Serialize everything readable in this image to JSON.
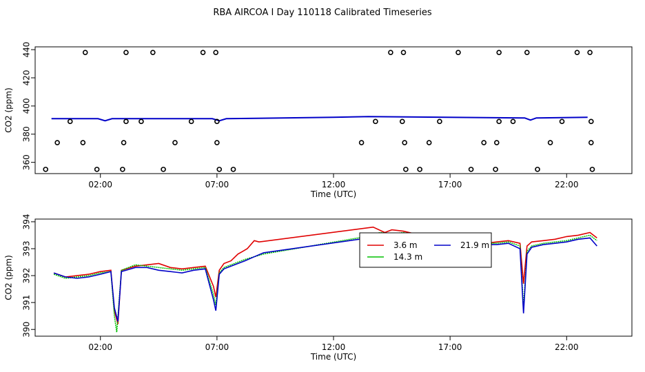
{
  "title": "RBA AIRCOA I  Day 110118  Calibrated Timeseries",
  "chart_data": [
    {
      "type": "scatter",
      "xlabel": "Time (UTC)",
      "ylabel": "CO2 (ppm)",
      "xlim": [
        -0.8,
        24.8
      ],
      "ylim": [
        352,
        442
      ],
      "xticks": [
        "02:00",
        "07:00",
        "12:00",
        "17:00",
        "22:00"
      ],
      "xtick_values": [
        2,
        7,
        12,
        17,
        22
      ],
      "yticks": [
        "360",
        "380",
        "400",
        "420",
        "440"
      ],
      "ytick_values": [
        360,
        380,
        400,
        420,
        440
      ],
      "points": [
        {
          "x": 1.35,
          "y": 438
        },
        {
          "x": 3.1,
          "y": 438
        },
        {
          "x": 4.25,
          "y": 438
        },
        {
          "x": 6.4,
          "y": 438
        },
        {
          "x": 6.95,
          "y": 438
        },
        {
          "x": 14.45,
          "y": 438
        },
        {
          "x": 15.0,
          "y": 438
        },
        {
          "x": 17.35,
          "y": 438
        },
        {
          "x": 19.1,
          "y": 438
        },
        {
          "x": 20.3,
          "y": 438
        },
        {
          "x": 22.45,
          "y": 438
        },
        {
          "x": 23.0,
          "y": 438
        },
        {
          "x": 0.7,
          "y": 389
        },
        {
          "x": 3.1,
          "y": 389
        },
        {
          "x": 3.75,
          "y": 389
        },
        {
          "x": 5.9,
          "y": 389
        },
        {
          "x": 7.0,
          "y": 389
        },
        {
          "x": 13.8,
          "y": 389
        },
        {
          "x": 14.95,
          "y": 389
        },
        {
          "x": 16.55,
          "y": 389
        },
        {
          "x": 19.1,
          "y": 389
        },
        {
          "x": 19.7,
          "y": 389
        },
        {
          "x": 21.8,
          "y": 389
        },
        {
          "x": 23.05,
          "y": 389
        },
        {
          "x": 0.15,
          "y": 374
        },
        {
          "x": 1.25,
          "y": 374
        },
        {
          "x": 3.0,
          "y": 374
        },
        {
          "x": 5.2,
          "y": 374
        },
        {
          "x": 7.0,
          "y": 374
        },
        {
          "x": 13.2,
          "y": 374
        },
        {
          "x": 15.05,
          "y": 374
        },
        {
          "x": 16.1,
          "y": 374
        },
        {
          "x": 18.45,
          "y": 374
        },
        {
          "x": 19.0,
          "y": 374
        },
        {
          "x": 21.3,
          "y": 374
        },
        {
          "x": 23.05,
          "y": 374
        },
        {
          "x": -0.35,
          "y": 355
        },
        {
          "x": 1.85,
          "y": 355
        },
        {
          "x": 2.95,
          "y": 355
        },
        {
          "x": 4.7,
          "y": 355
        },
        {
          "x": 7.1,
          "y": 355
        },
        {
          "x": 7.7,
          "y": 355
        },
        {
          "x": 15.1,
          "y": 355
        },
        {
          "x": 15.7,
          "y": 355
        },
        {
          "x": 17.9,
          "y": 355
        },
        {
          "x": 18.95,
          "y": 355
        },
        {
          "x": 20.75,
          "y": 355
        },
        {
          "x": 23.1,
          "y": 355
        }
      ],
      "line": {
        "x": [
          -0.1,
          1.9,
          2.2,
          2.5,
          6.8,
          7.1,
          7.4,
          12.0,
          13.5,
          20.2,
          20.45,
          20.7,
          22.9
        ],
        "y": [
          391,
          391,
          389.5,
          391,
          391,
          389.5,
          391,
          392,
          392.5,
          391.5,
          390,
          391.5,
          392
        ]
      }
    },
    {
      "type": "line",
      "xlabel": "Time (UTC)",
      "ylabel": "CO2 (ppm)",
      "xlim": [
        -0.8,
        24.8
      ],
      "ylim": [
        389.75,
        394.1
      ],
      "xticks": [
        "02:00",
        "07:00",
        "12:00",
        "17:00",
        "22:00"
      ],
      "xtick_values": [
        2,
        7,
        12,
        17,
        22
      ],
      "yticks": [
        "390",
        "391",
        "392",
        "393",
        "394"
      ],
      "ytick_values": [
        390,
        391,
        392,
        393,
        394
      ],
      "series": [
        {
          "name": "3.6 m",
          "color": "#e00000",
          "x": [
            0,
            0.5,
            1,
            1.5,
            2,
            2.45,
            2.6,
            2.75,
            2.9,
            3.5,
            4,
            4.5,
            5,
            5.5,
            6,
            6.5,
            6.85,
            6.95,
            7.1,
            7.3,
            7.6,
            7.9,
            8.1,
            8.3,
            8.6,
            8.8,
            13.7,
            14.2,
            14.5,
            15,
            15.5,
            16,
            16.5,
            17,
            17.5,
            18,
            18.5,
            19,
            19.5,
            20.0,
            20.15,
            20.3,
            20.5,
            21,
            21.5,
            22,
            22.5,
            23,
            23.3
          ],
          "y": [
            392.1,
            391.95,
            392.0,
            392.05,
            392.15,
            392.2,
            390.7,
            390.2,
            392.2,
            392.35,
            392.4,
            392.45,
            392.3,
            392.25,
            392.3,
            392.35,
            391.6,
            391.2,
            392.2,
            392.45,
            392.55,
            392.8,
            392.9,
            393.0,
            393.3,
            393.25,
            393.8,
            393.6,
            393.7,
            393.65,
            393.55,
            393.45,
            393.4,
            393.3,
            393.3,
            393.3,
            393.2,
            393.25,
            393.3,
            393.2,
            391.7,
            393.1,
            393.25,
            393.3,
            393.35,
            393.45,
            393.5,
            393.6,
            393.4
          ]
        },
        {
          "name": "14.3 m",
          "color": "#00c000",
          "x": [
            0,
            0.5,
            1,
            1.5,
            2,
            2.45,
            2.6,
            2.7,
            2.9,
            3.5,
            4,
            4.5,
            5,
            5.5,
            6,
            6.5,
            6.85,
            6.95,
            7.1,
            7.3,
            7.6,
            7.9,
            8.2,
            8.6,
            9.0,
            13.4,
            14.0,
            14.5,
            15,
            15.5,
            16,
            16.5,
            17,
            17.5,
            18,
            18.5,
            19,
            19.5,
            20.0,
            20.15,
            20.3,
            20.5,
            21,
            21.5,
            22,
            22.5,
            23,
            23.3
          ],
          "y": [
            392.05,
            391.9,
            391.95,
            392.0,
            392.1,
            392.15,
            390.5,
            389.9,
            392.2,
            392.4,
            392.35,
            392.3,
            392.25,
            392.2,
            392.25,
            392.3,
            391.3,
            390.9,
            392.1,
            392.3,
            392.4,
            392.5,
            392.6,
            392.7,
            392.8,
            393.45,
            393.6,
            393.55,
            393.6,
            393.5,
            393.45,
            393.35,
            393.3,
            393.3,
            393.25,
            393.2,
            393.2,
            393.25,
            393.1,
            390.8,
            392.9,
            393.1,
            393.2,
            393.25,
            393.3,
            393.4,
            393.5,
            393.3
          ]
        },
        {
          "name": "21.9 m",
          "color": "#0000c8",
          "x": [
            0,
            0.5,
            1,
            1.5,
            2,
            2.45,
            2.6,
            2.75,
            2.9,
            3.5,
            4,
            4.5,
            5,
            5.5,
            6,
            6.5,
            6.85,
            6.95,
            7.1,
            7.3,
            7.6,
            7.9,
            8.2,
            8.6,
            9.0,
            13.5,
            14.0,
            14.5,
            15,
            15.5,
            16,
            16.5,
            17,
            17.5,
            18,
            18.5,
            19,
            19.5,
            20.0,
            20.15,
            20.3,
            20.5,
            21,
            21.5,
            22,
            22.5,
            23,
            23.3
          ],
          "y": [
            392.1,
            391.95,
            391.9,
            391.95,
            392.05,
            392.15,
            390.8,
            390.3,
            392.15,
            392.3,
            392.3,
            392.2,
            392.15,
            392.1,
            392.2,
            392.25,
            391.1,
            390.7,
            392.05,
            392.25,
            392.35,
            392.45,
            392.55,
            392.7,
            392.85,
            393.4,
            393.5,
            393.5,
            393.5,
            393.45,
            393.4,
            393.3,
            393.25,
            393.2,
            393.2,
            393.15,
            393.15,
            393.2,
            393.0,
            390.6,
            392.8,
            393.05,
            393.15,
            393.2,
            393.25,
            393.35,
            393.4,
            393.1
          ]
        }
      ],
      "legend": {
        "position": "top-center"
      }
    }
  ]
}
